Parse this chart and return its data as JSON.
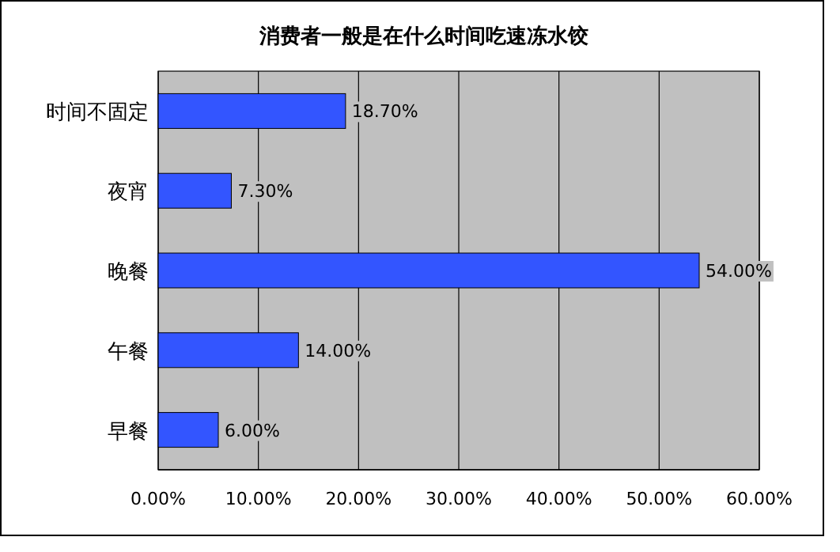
{
  "chart_data": {
    "type": "bar",
    "orientation": "horizontal",
    "title": "消费者一般是在什么时间吃速冻水饺",
    "categories": [
      "时间不固定",
      "夜宵",
      "晚餐",
      "午餐",
      "早餐"
    ],
    "values": [
      18.7,
      7.3,
      54,
      14,
      6
    ],
    "value_labels": [
      "18.70%",
      "7.30%",
      "54.00%",
      "14.00%",
      "6.00%"
    ],
    "color": "#3355ff",
    "xlim": [
      0,
      60
    ],
    "xticks": [
      {
        "value": 0,
        "label": "0.00%"
      },
      {
        "value": 10,
        "label": "10.00%"
      },
      {
        "value": 20,
        "label": "20.00%"
      },
      {
        "value": 30,
        "label": "30.00%"
      },
      {
        "value": 40,
        "label": "40.00%"
      },
      {
        "value": 50,
        "label": "50.00%"
      },
      {
        "value": 60,
        "label": "60.00%"
      }
    ],
    "grid": "x"
  }
}
